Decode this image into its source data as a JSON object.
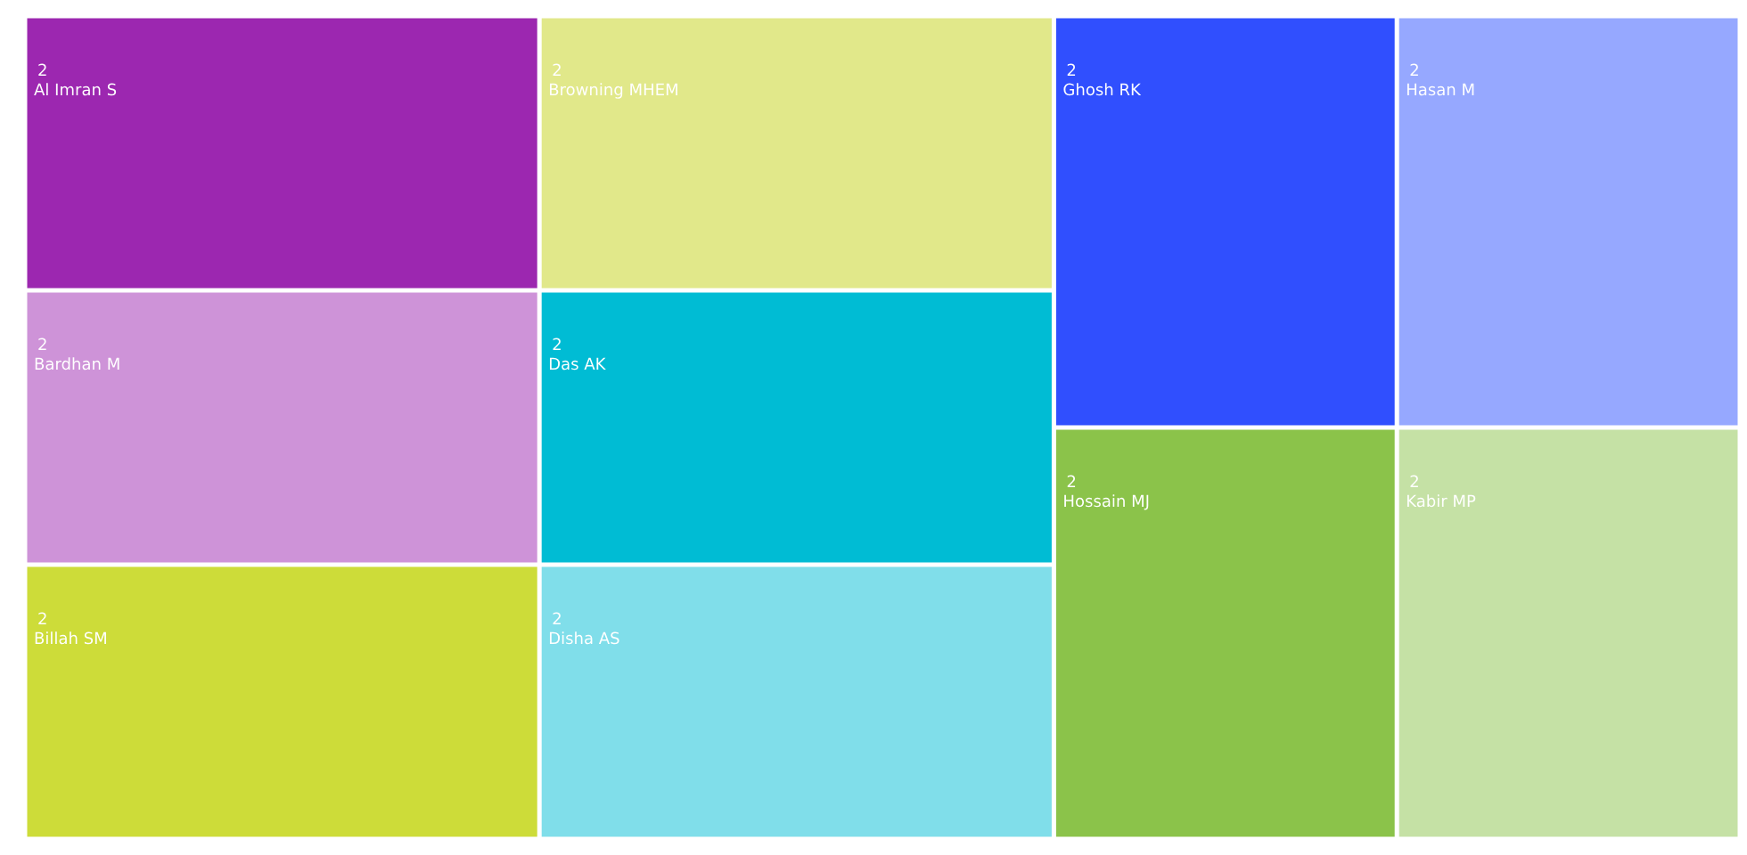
{
  "chart_data": {
    "type": "other",
    "data_labels": true,
    "categories": [
      "Al Imran S",
      "Bardhan M",
      "Billah SM",
      "Browning MHEM",
      "Das AK",
      "Disha AS",
      "Ghosh RK",
      "Hasan M",
      "Hossain MJ",
      "Kabir MP"
    ],
    "values": [
      2,
      2,
      2,
      2,
      2,
      2,
      2,
      2,
      2,
      2
    ],
    "colors": [
      "#9c27b0",
      "#ce93d8",
      "#cddc39",
      "#e1e88a",
      "#00bcd4",
      "#80deea",
      "#304ffe",
      "#96a8ff",
      "#8bc34a",
      "#c5e1a5"
    ]
  }
}
